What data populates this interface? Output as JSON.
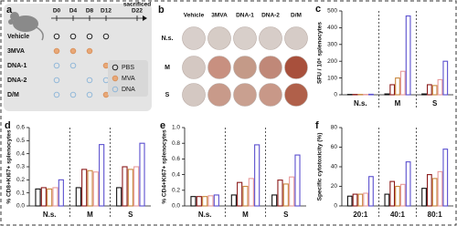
{
  "panel_a": {
    "label": "a",
    "timepoints": [
      "D0",
      "D4",
      "D8",
      "D12",
      "D22"
    ],
    "end_label": "sacrificed",
    "groups": [
      {
        "name": "Vehicle",
        "color": "#111111",
        "schedule": [
          0,
          0,
          0,
          0
        ]
      },
      {
        "name": "3MVA",
        "color": "#8b1a1a",
        "schedule": [
          1,
          1,
          1,
          null
        ]
      },
      {
        "name": "DNA-1",
        "color": "#c8863c",
        "schedule": [
          2,
          2,
          null,
          1
        ]
      },
      {
        "name": "DNA-2",
        "color": "#e89a9a",
        "schedule": [
          2,
          null,
          2,
          2
        ]
      },
      {
        "name": "D/M",
        "color": "#111111",
        "schedule": [
          2,
          2,
          2,
          1
        ]
      }
    ],
    "legend": [
      {
        "name": "PBS",
        "stroke": "#111111",
        "fill": "none"
      },
      {
        "name": "MVA",
        "stroke": "#d9905a",
        "fill": "#e8a878"
      },
      {
        "name": "DNA",
        "stroke": "#8ab4d8",
        "fill": "none"
      }
    ]
  },
  "panel_b": {
    "label": "b",
    "columns": [
      {
        "name": "Vehicle",
        "color": "#111111"
      },
      {
        "name": "3MVA",
        "color": "#8b1a1a"
      },
      {
        "name": "DNA-1",
        "color": "#c8863c"
      },
      {
        "name": "DNA-2",
        "color": "#e89a9a"
      },
      {
        "name": "D/M",
        "color": "#3a3a8c"
      }
    ],
    "rows": [
      "N.s.",
      "M",
      "S"
    ],
    "well_tint": [
      [
        "#d8cfcb",
        "#d6ccc6",
        "#d8cfca",
        "#d7cdc8",
        "#d6ccc7"
      ],
      [
        "#d4c8c2",
        "#c89080",
        "#c49a88",
        "#c08878",
        "#a8503c"
      ],
      [
        "#d4c8c2",
        "#c89a8a",
        "#c9a090",
        "#c89888",
        "#b0604a"
      ]
    ]
  },
  "chart_data": [
    {
      "type": "bar",
      "label": "c",
      "y_label": "SFU / 10⁶ splenocytes",
      "categories": [
        "N.s.",
        "M",
        "S"
      ],
      "ylim": [
        0,
        500
      ],
      "yticks": [
        0,
        100,
        200,
        300,
        400,
        500
      ],
      "series": [
        {
          "color": "#111111",
          "values": [
            2,
            5,
            5
          ]
        },
        {
          "color": "#8b1a1a",
          "values": [
            2,
            60,
            60
          ]
        },
        {
          "color": "#c8863c",
          "values": [
            2,
            100,
            55
          ]
        },
        {
          "color": "#e89a9a",
          "values": [
            2,
            140,
            90
          ]
        },
        {
          "color": "#5a4fcf",
          "values": [
            3,
            470,
            200
          ]
        }
      ]
    },
    {
      "type": "bar",
      "label": "d",
      "y_label": "% CD8+Ki67+ splenocytes",
      "categories": [
        "N.s.",
        "M",
        "S"
      ],
      "ylim": [
        0,
        0.6
      ],
      "yticks": [
        {
          "value": 0,
          "label": "0.0"
        },
        0.1,
        0.2,
        0.3,
        0.4,
        0.5,
        0.6
      ],
      "series": [
        {
          "color": "#111111",
          "values": [
            0.13,
            0.14,
            0.14
          ]
        },
        {
          "color": "#8b1a1a",
          "values": [
            0.14,
            0.28,
            0.3
          ]
        },
        {
          "color": "#c8863c",
          "values": [
            0.13,
            0.27,
            0.28
          ]
        },
        {
          "color": "#e89a9a",
          "values": [
            0.14,
            0.26,
            0.3
          ]
        },
        {
          "color": "#5a4fcf",
          "values": [
            0.2,
            0.47,
            0.48
          ]
        }
      ]
    },
    {
      "type": "bar",
      "label": "e",
      "y_label": "% CD4+Ki67+ splenocytes",
      "categories": [
        "N.s.",
        "M",
        "S"
      ],
      "ylim": [
        0,
        1
      ],
      "yticks": [
        {
          "value": 0,
          "label": "0.0"
        },
        0.2,
        0.4,
        0.6,
        0.8,
        {
          "value": 1,
          "label": "1.0"
        }
      ],
      "series": [
        {
          "color": "#111111",
          "values": [
            0.12,
            0.14,
            0.14
          ]
        },
        {
          "color": "#8b1a1a",
          "values": [
            0.12,
            0.3,
            0.33
          ]
        },
        {
          "color": "#c8863c",
          "values": [
            0.12,
            0.25,
            0.28
          ]
        },
        {
          "color": "#e89a9a",
          "values": [
            0.13,
            0.35,
            0.37
          ]
        },
        {
          "color": "#5a4fcf",
          "values": [
            0.14,
            0.78,
            0.65
          ]
        }
      ]
    },
    {
      "type": "bar",
      "label": "f",
      "y_label": "Specific cytotoxicity (%)",
      "categories": [
        "20:1",
        "40:1",
        "80:1"
      ],
      "ylim": [
        0,
        80
      ],
      "yticks": [
        0,
        20,
        40,
        60,
        80
      ],
      "series": [
        {
          "color": "#111111",
          "values": [
            10,
            12,
            18
          ]
        },
        {
          "color": "#8b1a1a",
          "values": [
            12,
            25,
            32
          ]
        },
        {
          "color": "#c8863c",
          "values": [
            12,
            20,
            28
          ]
        },
        {
          "color": "#e89a9a",
          "values": [
            13,
            22,
            35
          ]
        },
        {
          "color": "#5a4fcf",
          "values": [
            30,
            45,
            58
          ]
        }
      ]
    }
  ]
}
